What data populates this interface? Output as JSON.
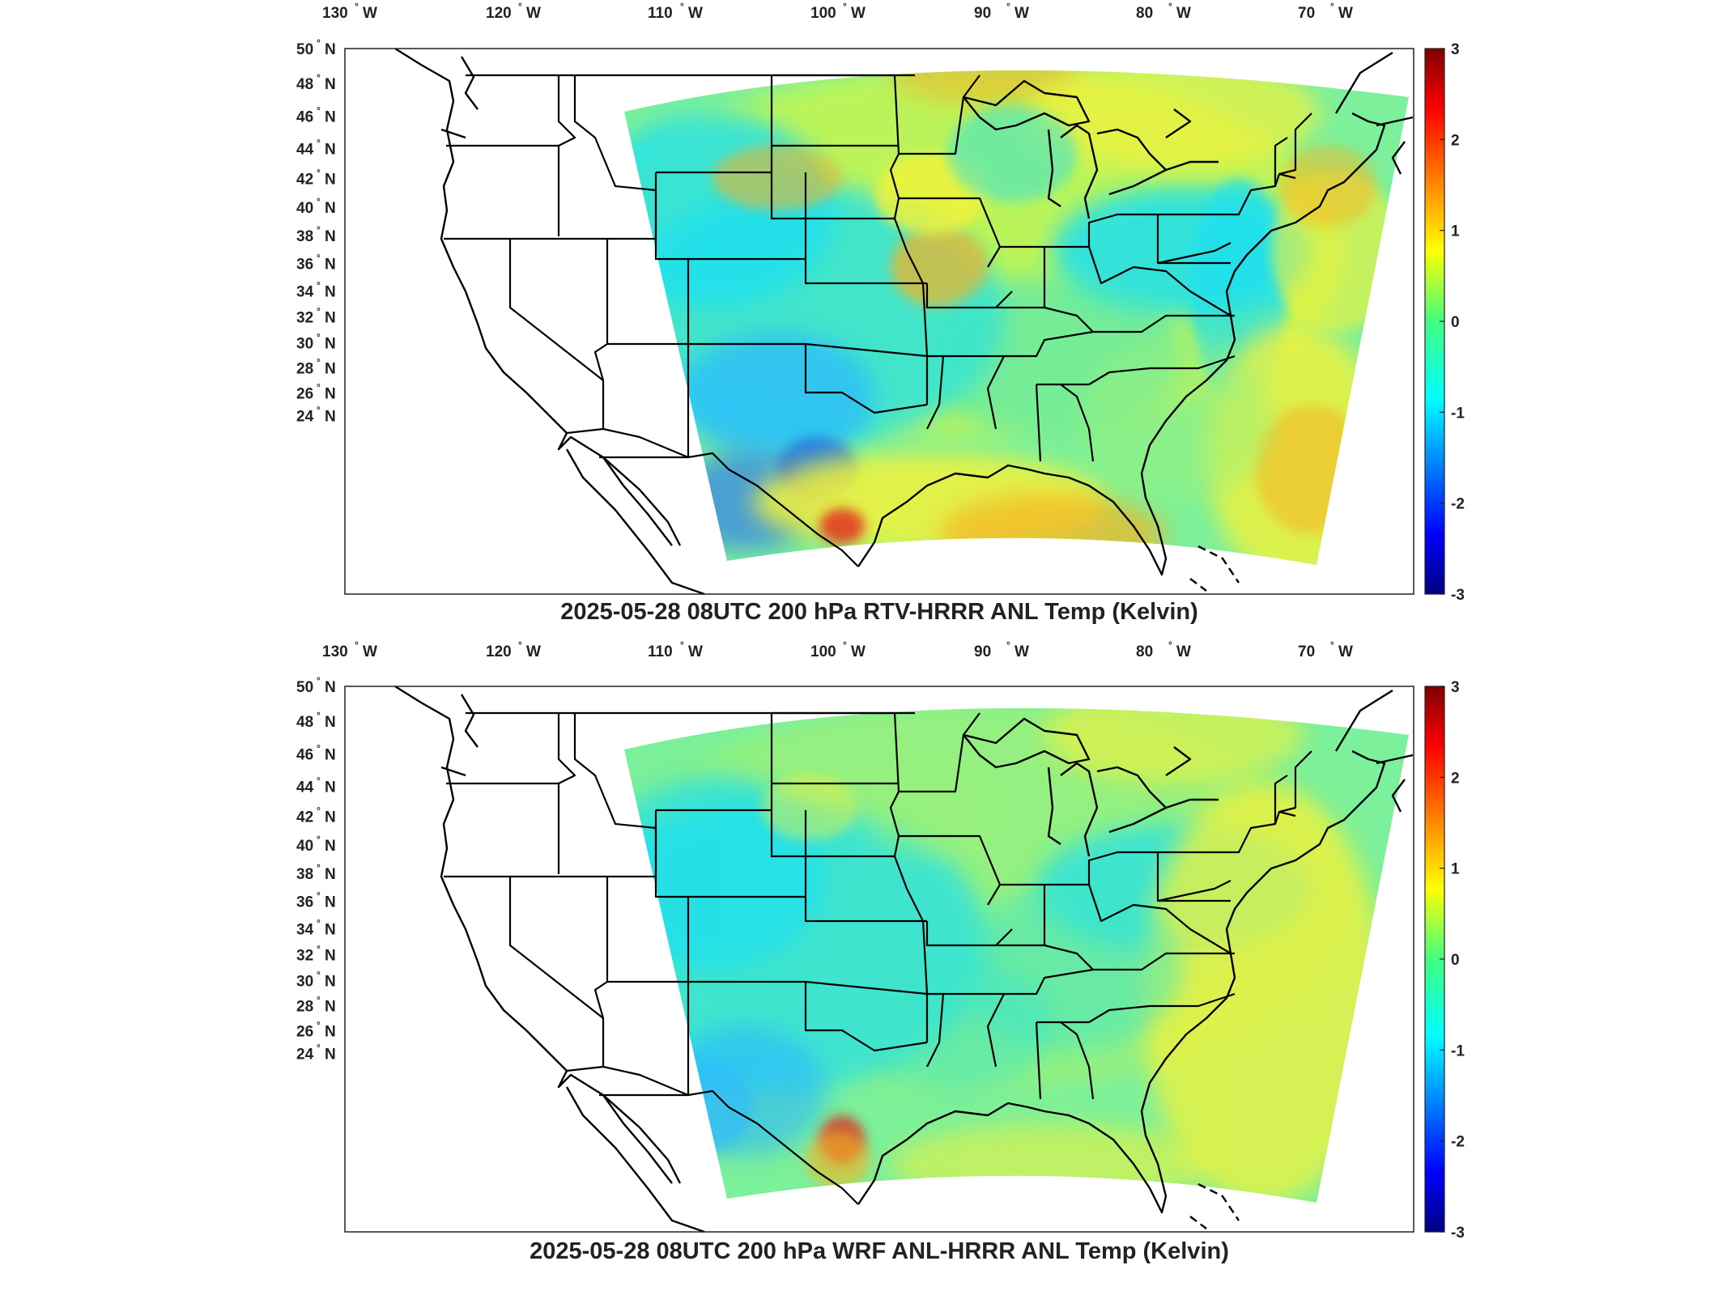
{
  "panels": [
    {
      "title": "2025-05-28 08UTC 200 hPa RTV-HRRR ANL Temp (Kelvin)",
      "palette": "rtv"
    },
    {
      "title": "2025-05-28 08UTC 200 hPa WRF ANL-HRRR ANL Temp (Kelvin)",
      "palette": "wrf"
    }
  ],
  "lon_ticks": [
    {
      "value": "130",
      "dir": "W"
    },
    {
      "value": "120",
      "dir": "W"
    },
    {
      "value": "110",
      "dir": "W"
    },
    {
      "value": "100",
      "dir": "W"
    },
    {
      "value": "90",
      "dir": "W"
    },
    {
      "value": "80",
      "dir": "W"
    },
    {
      "value": "70",
      "dir": "W"
    }
  ],
  "lat_ticks": [
    {
      "value": "50",
      "dir": "N"
    },
    {
      "value": "48",
      "dir": "N"
    },
    {
      "value": "46",
      "dir": "N"
    },
    {
      "value": "44",
      "dir": "N"
    },
    {
      "value": "42",
      "dir": "N"
    },
    {
      "value": "40",
      "dir": "N"
    },
    {
      "value": "38",
      "dir": "N"
    },
    {
      "value": "36",
      "dir": "N"
    },
    {
      "value": "34",
      "dir": "N"
    },
    {
      "value": "32",
      "dir": "N"
    },
    {
      "value": "30",
      "dir": "N"
    },
    {
      "value": "28",
      "dir": "N"
    },
    {
      "value": "26",
      "dir": "N"
    },
    {
      "value": "24",
      "dir": "N"
    }
  ],
  "degree_symbol": "°",
  "colorbar": {
    "min": -3,
    "max": 3,
    "ticks": [
      "3",
      "2",
      "1",
      "0",
      "-1",
      "-2",
      "-3"
    ],
    "colormap": "jet"
  }
}
